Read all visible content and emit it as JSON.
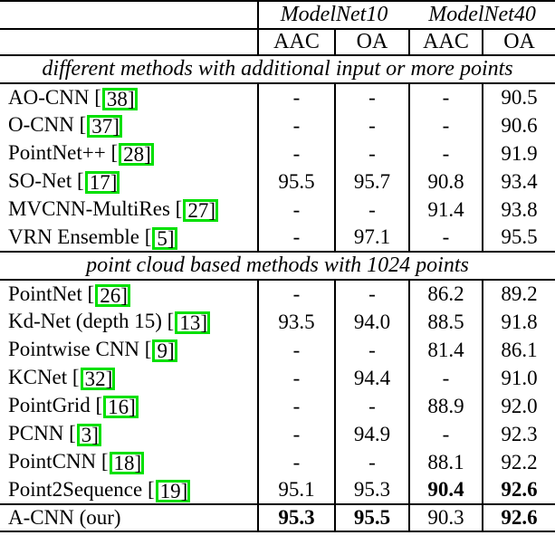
{
  "table": {
    "column_groups": [
      {
        "label": "ModelNet10"
      },
      {
        "label": "ModelNet40"
      }
    ],
    "sub_headers": [
      "AAC",
      "OA",
      "AAC",
      "OA"
    ],
    "sections": [
      {
        "title": "different methods with additional input or more points",
        "rows": [
          {
            "method": "AO-CNN",
            "cite": "38",
            "values": [
              {
                "text": "-"
              },
              {
                "text": "-"
              },
              {
                "text": "-"
              },
              {
                "text": "90.5"
              }
            ]
          },
          {
            "method": "O-CNN",
            "cite": "37",
            "values": [
              {
                "text": "-"
              },
              {
                "text": "-"
              },
              {
                "text": "-"
              },
              {
                "text": "90.6"
              }
            ]
          },
          {
            "method": "PointNet++",
            "cite": "28",
            "values": [
              {
                "text": "-"
              },
              {
                "text": "-"
              },
              {
                "text": "-"
              },
              {
                "text": "91.9"
              }
            ]
          },
          {
            "method": "SO-Net",
            "cite": "17",
            "values": [
              {
                "text": "95.5"
              },
              {
                "text": "95.7"
              },
              {
                "text": "90.8"
              },
              {
                "text": "93.4"
              }
            ]
          },
          {
            "method": "MVCNN-MultiRes",
            "cite": "27",
            "values": [
              {
                "text": "-"
              },
              {
                "text": "-"
              },
              {
                "text": "91.4"
              },
              {
                "text": "93.8"
              }
            ]
          },
          {
            "method": "VRN Ensemble",
            "cite": "5",
            "values": [
              {
                "text": "-"
              },
              {
                "text": "97.1"
              },
              {
                "text": "-"
              },
              {
                "text": "95.5"
              }
            ]
          }
        ]
      },
      {
        "title": "point cloud based methods with 1024 points",
        "rows": [
          {
            "method": "PointNet",
            "cite": "26",
            "values": [
              {
                "text": "-"
              },
              {
                "text": "-"
              },
              {
                "text": "86.2"
              },
              {
                "text": "89.2"
              }
            ]
          },
          {
            "method": "Kd-Net (depth 15)",
            "cite": "13",
            "values": [
              {
                "text": "93.5"
              },
              {
                "text": "94.0"
              },
              {
                "text": "88.5"
              },
              {
                "text": "91.8"
              }
            ]
          },
          {
            "method": "Pointwise CNN",
            "cite": "9",
            "values": [
              {
                "text": "-"
              },
              {
                "text": "-"
              },
              {
                "text": "81.4"
              },
              {
                "text": "86.1"
              }
            ]
          },
          {
            "method": "KCNet",
            "cite": "32",
            "values": [
              {
                "text": "-"
              },
              {
                "text": "94.4"
              },
              {
                "text": "-"
              },
              {
                "text": "91.0"
              }
            ]
          },
          {
            "method": "PointGrid",
            "cite": "16",
            "values": [
              {
                "text": "-"
              },
              {
                "text": "-"
              },
              {
                "text": "88.9"
              },
              {
                "text": "92.0"
              }
            ]
          },
          {
            "method": "PCNN",
            "cite": "3",
            "values": [
              {
                "text": "-"
              },
              {
                "text": "94.9"
              },
              {
                "text": "-"
              },
              {
                "text": "92.3"
              }
            ]
          },
          {
            "method": "PointCNN",
            "cite": "18",
            "values": [
              {
                "text": "-"
              },
              {
                "text": "-"
              },
              {
                "text": "88.1"
              },
              {
                "text": "92.2"
              }
            ]
          },
          {
            "method": "Point2Sequence",
            "cite": "19",
            "values": [
              {
                "text": "95.1"
              },
              {
                "text": "95.3"
              },
              {
                "text": "90.4",
                "bold": true
              },
              {
                "text": "92.6",
                "bold": true
              }
            ]
          }
        ]
      }
    ],
    "final_row": {
      "method": "A-CNN (our)",
      "values": [
        {
          "text": "95.3",
          "bold": true
        },
        {
          "text": "95.5",
          "bold": true
        },
        {
          "text": "90.3"
        },
        {
          "text": "92.6",
          "bold": true
        }
      ]
    }
  },
  "colors": {
    "citation_border": "#00e000",
    "rule_color": "#000000",
    "background": "#ffffff",
    "text_color": "#000000"
  }
}
